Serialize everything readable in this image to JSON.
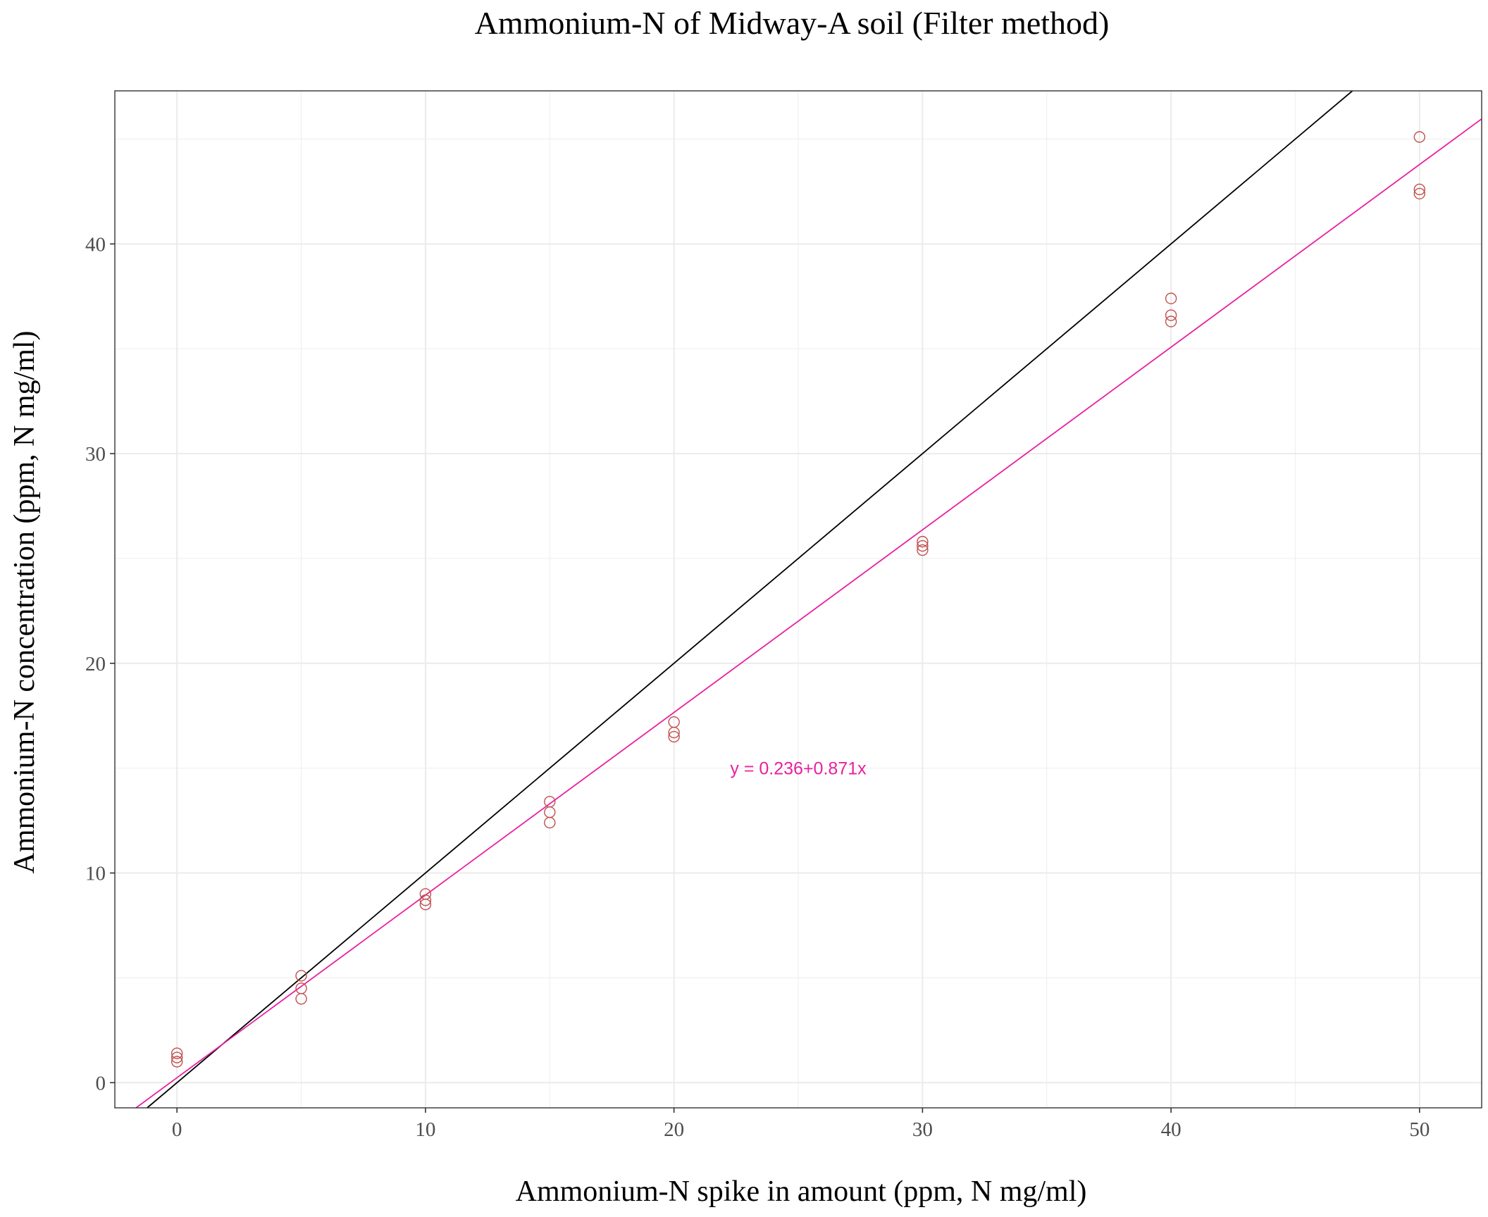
{
  "chart_data": {
    "type": "scatter",
    "title": "Ammonium-N of Midway-A soil (Filter method)",
    "xlabel": "Ammonium-N spike in amount (ppm, N mg/ml)",
    "ylabel": "Ammonium-N concentration (ppm, N mg/ml)",
    "xlim": [
      -2.5,
      52.5
    ],
    "ylim": [
      -1.2,
      47.3
    ],
    "x_ticks": [
      0,
      10,
      20,
      30,
      40,
      50
    ],
    "x_tick_labels": [
      "0",
      "10",
      "20",
      "30",
      "40",
      "50"
    ],
    "y_ticks": [
      0,
      10,
      20,
      30,
      40
    ],
    "y_tick_labels": [
      "0",
      "10",
      "20",
      "30",
      "40"
    ],
    "grid": true,
    "points": [
      {
        "x": 0,
        "y": 1.4
      },
      {
        "x": 0,
        "y": 1.2
      },
      {
        "x": 0,
        "y": 1.0
      },
      {
        "x": 5,
        "y": 5.1
      },
      {
        "x": 5,
        "y": 4.5
      },
      {
        "x": 5,
        "y": 4.0
      },
      {
        "x": 10,
        "y": 9.0
      },
      {
        "x": 10,
        "y": 8.7
      },
      {
        "x": 10,
        "y": 8.5
      },
      {
        "x": 15,
        "y": 13.4
      },
      {
        "x": 15,
        "y": 12.9
      },
      {
        "x": 15,
        "y": 12.4
      },
      {
        "x": 20,
        "y": 17.2
      },
      {
        "x": 20,
        "y": 16.7
      },
      {
        "x": 20,
        "y": 16.5
      },
      {
        "x": 30,
        "y": 25.8
      },
      {
        "x": 30,
        "y": 25.6
      },
      {
        "x": 30,
        "y": 25.4
      },
      {
        "x": 40,
        "y": 37.4
      },
      {
        "x": 40,
        "y": 36.6
      },
      {
        "x": 40,
        "y": 36.3
      },
      {
        "x": 50,
        "y": 45.1
      },
      {
        "x": 50,
        "y": 42.6
      },
      {
        "x": 50,
        "y": 42.4
      }
    ],
    "lines": [
      {
        "intercept": 0,
        "slope": 1,
        "color": "#000000"
      },
      {
        "intercept": 0.236,
        "slope": 0.871,
        "color": "#e8219f"
      }
    ],
    "annotation": {
      "text": "y = 0.236+0.871x",
      "x": 25,
      "y": 15.0,
      "color": "#e8219f"
    },
    "point_color": "#c0504d"
  }
}
